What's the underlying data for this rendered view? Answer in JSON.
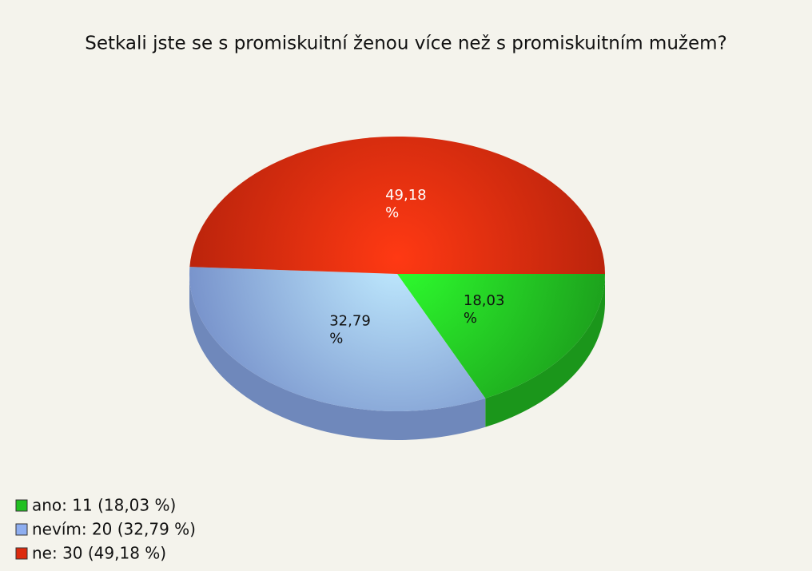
{
  "chart_data": {
    "type": "pie",
    "title": "Setkali jste se s promiskuitní ženou více než s promiskuitním mužem?",
    "categories": [
      "ano",
      "nevím",
      "ne"
    ],
    "values": [
      18.03,
      32.79,
      49.18
    ],
    "value_labels": [
      "18,03 %",
      "32,79 %",
      "49,18 %"
    ],
    "legend_labels": [
      "ano: 11 (18,03 %)",
      "nevím: 20 (32,79 %)",
      "ne: 30 (49,18 %)"
    ],
    "colors": [
      "#22c022",
      "#8eaef0",
      "#dc2a0e"
    ]
  }
}
